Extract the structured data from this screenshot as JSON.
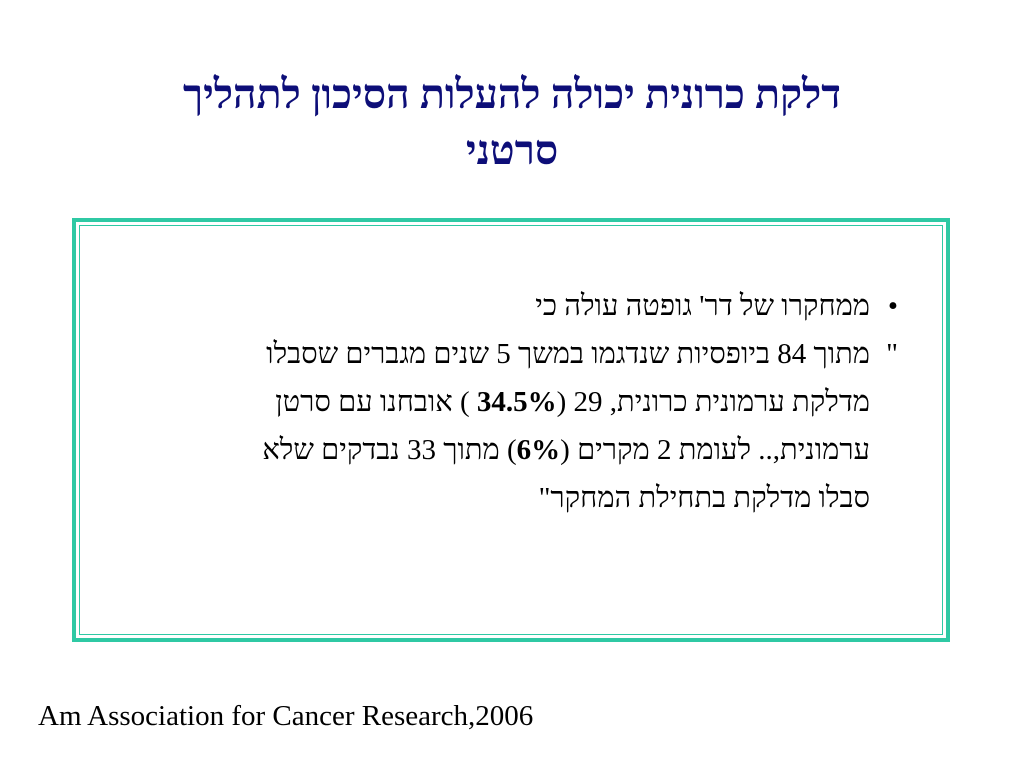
{
  "slide": {
    "title_line1": "דלקת כרונית יכולה להעלות הסיכון לתהליך",
    "title_line2": "סרטני",
    "bullet_char": "•",
    "bullet_text": "ממחקרו של דר' גופטה עולה כי",
    "quote_mark_open": "\"",
    "quote_line1": "מתוך 84 ביופסיות שנדגמו במשך 5 שנים מגברים שסבלו",
    "quote_line2_a": "מדלקת ערמונית כרונית, 29 (",
    "quote_line2_bold": "34.5%",
    "quote_line2_b": " ) אובחנו עם סרטן",
    "quote_line3_a": "ערמונית,.. לעומת  2 מקרים (",
    "quote_line3_bold": "6%",
    "quote_line3_b": ") מתוך 33 נבדקים  שלא",
    "quote_line4": "סבלו מדלקת בתחילת המחקר\"",
    "footer": "Am Association for Cancer Research,2006",
    "colors": {
      "title": "#0d0e78",
      "frame_border": "#2fc9a4",
      "text": "#000000"
    }
  }
}
